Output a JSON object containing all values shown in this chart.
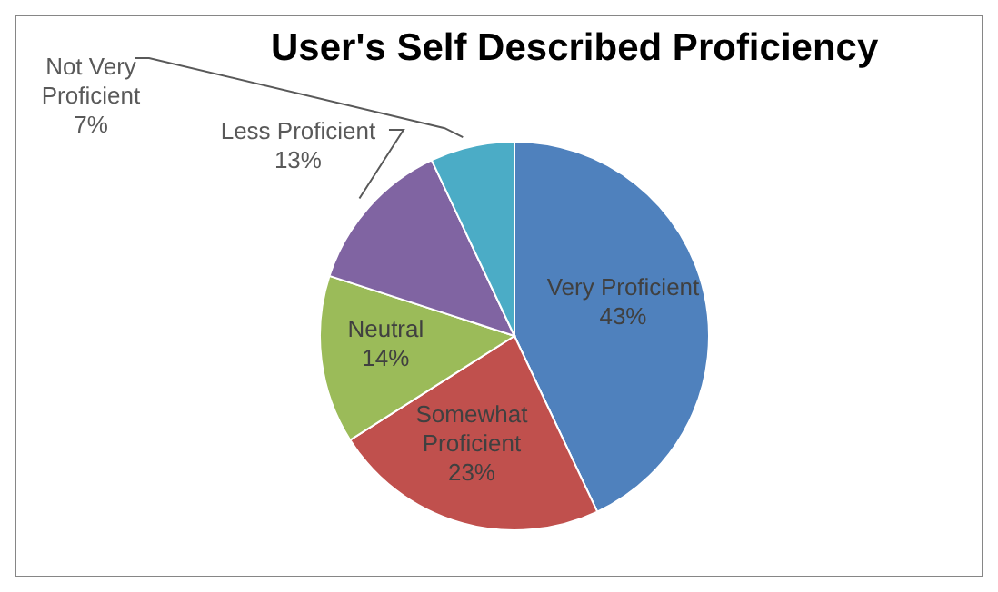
{
  "chart_data": {
    "type": "pie",
    "title": "User's Self Described Proficiency",
    "categories": [
      "Very Proficient",
      "Somewhat Proficient",
      "Neutral",
      "Less Proficient",
      "Not Very Proficient"
    ],
    "values": [
      43,
      23,
      14,
      13,
      7
    ],
    "colors": [
      "#4f81bd",
      "#c0504d",
      "#9bbb59",
      "#8064a2",
      "#4bacc6"
    ],
    "value_labels": [
      "43%",
      "23%",
      "14%",
      "13%",
      "7%"
    ],
    "legend": false
  }
}
